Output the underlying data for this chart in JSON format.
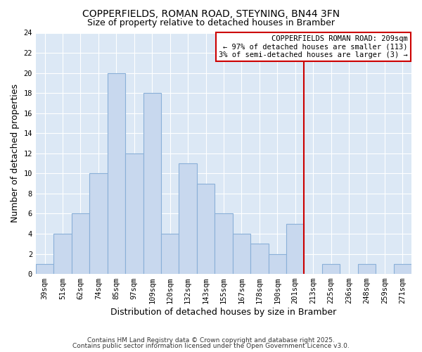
{
  "title": "COPPERFIELDS, ROMAN ROAD, STEYNING, BN44 3FN",
  "subtitle": "Size of property relative to detached houses in Bramber",
  "xlabel": "Distribution of detached houses by size in Bramber",
  "ylabel": "Number of detached properties",
  "bar_labels": [
    "39sqm",
    "51sqm",
    "62sqm",
    "74sqm",
    "85sqm",
    "97sqm",
    "109sqm",
    "120sqm",
    "132sqm",
    "143sqm",
    "155sqm",
    "167sqm",
    "178sqm",
    "190sqm",
    "201sqm",
    "213sqm",
    "225sqm",
    "236sqm",
    "248sqm",
    "259sqm",
    "271sqm"
  ],
  "bar_values": [
    1,
    4,
    6,
    10,
    20,
    12,
    18,
    4,
    11,
    9,
    6,
    4,
    3,
    2,
    5,
    0,
    1,
    0,
    1,
    0,
    1
  ],
  "bar_color": "#c8d8ee",
  "bar_edge_color": "#8ab0d8",
  "ref_line_x": 14.5,
  "ref_line_color": "#cc0000",
  "ylim": [
    0,
    24
  ],
  "yticks": [
    0,
    2,
    4,
    6,
    8,
    10,
    12,
    14,
    16,
    18,
    20,
    22,
    24
  ],
  "legend_title": "COPPERFIELDS ROMAN ROAD: 209sqm",
  "legend_line1": "← 97% of detached houses are smaller (113)",
  "legend_line2": "3% of semi-detached houses are larger (3) →",
  "legend_box_color": "#cc0000",
  "legend_bg": "#ffffff",
  "fig_bg_color": "#ffffff",
  "plot_bg_color": "#dce8f5",
  "grid_color": "#ffffff",
  "footer_line1": "Contains HM Land Registry data © Crown copyright and database right 2025.",
  "footer_line2": "Contains public sector information licensed under the Open Government Licence v3.0.",
  "title_fontsize": 10,
  "subtitle_fontsize": 9,
  "axis_label_fontsize": 9,
  "tick_fontsize": 7.5,
  "legend_fontsize": 7.5,
  "footer_fontsize": 6.5
}
